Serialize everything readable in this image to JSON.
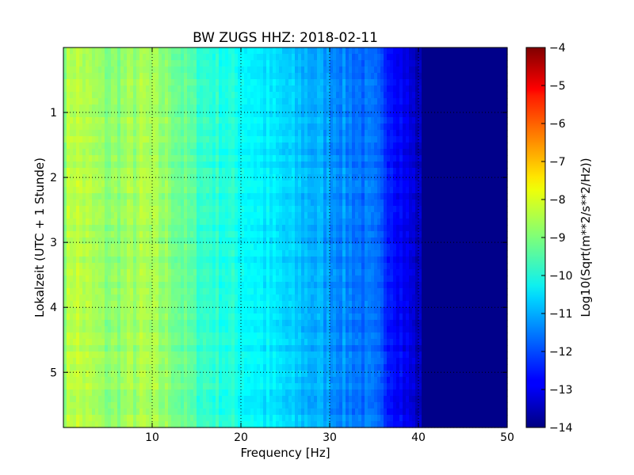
{
  "chart_data": {
    "type": "heatmap",
    "title": "BW ZUGS HHZ: 2018-02-11",
    "xlabel": "Frequency [Hz]",
    "ylabel": "Lokalzeit (UTC + 1 Stunde)",
    "xlim": [
      0,
      50
    ],
    "ylim": [
      5.85,
      0
    ],
    "x_ticks": [
      10,
      20,
      30,
      40,
      50
    ],
    "y_ticks": [
      1,
      2,
      3,
      4,
      5
    ],
    "grid": true,
    "colormap": "jet",
    "colorbar": {
      "label": "Log10(Sqrt(m**2/s**2/Hz))",
      "range": [
        -14,
        -4
      ],
      "ticks": [
        -4,
        -5,
        -6,
        -7,
        -8,
        -9,
        -10,
        -11,
        -12,
        -13,
        -14
      ]
    },
    "profile": {
      "description_units": "log10 amplitude vs frequency",
      "frequency": [
        0,
        1,
        5,
        9,
        12,
        15,
        20,
        25,
        30,
        35,
        38,
        40,
        41,
        50
      ],
      "value": [
        -8.8,
        -8.3,
        -8.9,
        -8.6,
        -8.9,
        -9.6,
        -10.1,
        -10.7,
        -11.2,
        -11.8,
        -12.7,
        -13.4,
        -13.8,
        -13.8
      ]
    }
  }
}
